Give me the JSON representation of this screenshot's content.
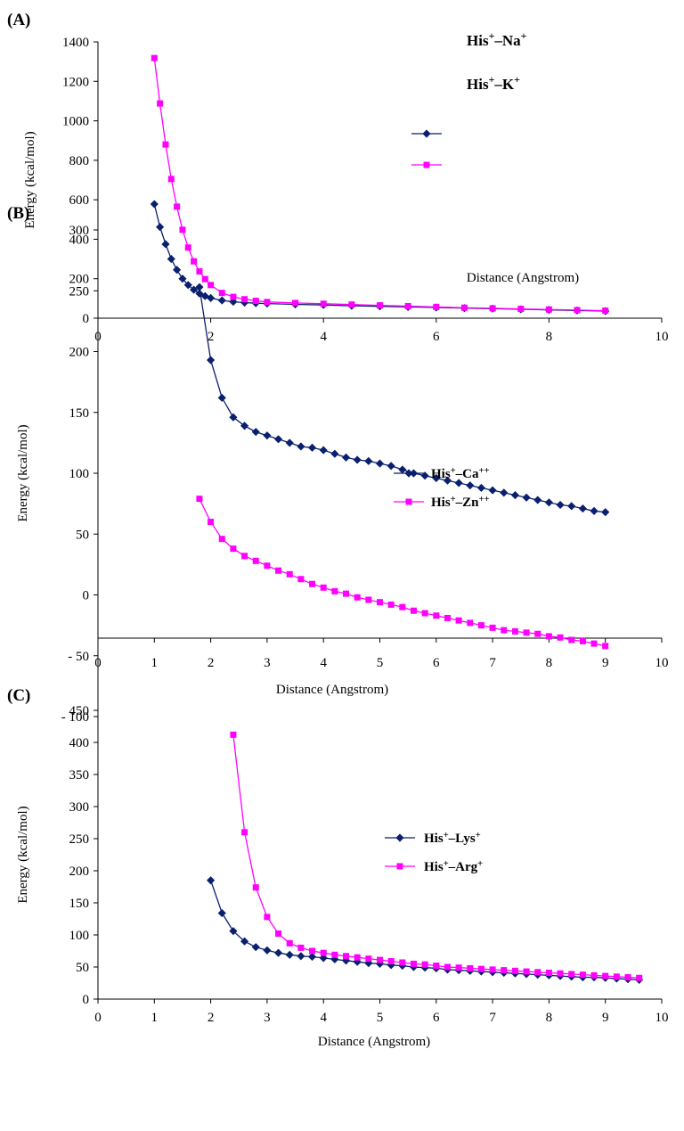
{
  "chart_data": [
    {
      "type": "line",
      "panel_label": "(A)",
      "xlabel": "Distance  (Angstrom)",
      "ylabel": "Energy  (kcal/mol)",
      "xlim": [
        0,
        10
      ],
      "ylim": [
        0,
        1400
      ],
      "xticks": [
        "0",
        "2",
        "4",
        "6",
        "8",
        "10"
      ],
      "yticks": [
        "0",
        "200",
        "400",
        "600",
        "800",
        "1000",
        "1200",
        "1400"
      ],
      "series": [
        {
          "name": "His⁺–Na⁺",
          "color": "#0a1f6e",
          "marker": "diamond",
          "x": [
            1.0,
            1.1,
            1.2,
            1.3,
            1.4,
            1.5,
            1.6,
            1.7,
            1.8,
            1.9,
            2.0,
            2.2,
            2.4,
            2.6,
            2.8,
            3.0,
            3.5,
            4.0,
            4.5,
            5.0,
            5.5,
            6.0,
            6.5,
            7.0,
            7.5,
            8.0,
            8.5,
            9.0
          ],
          "y": [
            578,
            462,
            375,
            300,
            245,
            200,
            168,
            144,
            125,
            112,
            102,
            90,
            83,
            79,
            76,
            74,
            70,
            67,
            63,
            60,
            57,
            54,
            51,
            48,
            45,
            42,
            39,
            36
          ]
        },
        {
          "name": "His⁺–K⁺",
          "color": "#ff00ff",
          "marker": "square",
          "x": [
            1.0,
            1.1,
            1.2,
            1.3,
            1.4,
            1.5,
            1.6,
            1.7,
            1.8,
            1.9,
            2.0,
            2.2,
            2.4,
            2.6,
            2.8,
            3.0,
            3.5,
            4.0,
            4.5,
            5.0,
            5.5,
            6.0,
            6.5,
            7.0,
            7.5,
            8.0,
            8.5,
            9.0
          ],
          "y": [
            1318,
            1088,
            880,
            705,
            565,
            448,
            358,
            288,
            237,
            198,
            168,
            128,
            108,
            96,
            88,
            82,
            77,
            73,
            69,
            65,
            61,
            57,
            53,
            50,
            47,
            44,
            41,
            38
          ]
        }
      ]
    },
    {
      "type": "line",
      "panel_label": "(B)",
      "xlabel": "Distance  (Angstrom)",
      "ylabel": "Energy  (kcal/mol)",
      "xlim": [
        0,
        10
      ],
      "ylim": [
        -100,
        300
      ],
      "xticks": [
        "0",
        "1",
        "2",
        "3",
        "4",
        "5",
        "6",
        "7",
        "8",
        "9",
        "10"
      ],
      "yticks": [
        "- 100",
        "- 50",
        "0",
        "50",
        "100",
        "150",
        "200",
        "250",
        "300"
      ],
      "series": [
        {
          "name": "His⁺–Ca⁺⁺",
          "color": "#0a1f6e",
          "marker": "diamond",
          "x": [
            1.8,
            2.0,
            2.2,
            2.4,
            2.6,
            2.8,
            3.0,
            3.2,
            3.4,
            3.6,
            3.8,
            4.0,
            4.2,
            4.4,
            4.6,
            4.8,
            5.0,
            5.2,
            5.4,
            5.6,
            5.8,
            6.0,
            6.2,
            6.4,
            6.6,
            6.8,
            7.0,
            7.2,
            7.4,
            7.6,
            7.8,
            8.0,
            8.2,
            8.4,
            8.6,
            8.8,
            9.0
          ],
          "y": [
            253,
            193,
            162,
            146,
            139,
            134,
            131,
            128,
            125,
            122,
            121,
            119,
            116,
            113,
            111,
            110,
            108,
            106,
            103,
            100,
            98,
            96,
            94,
            92,
            90,
            88,
            86,
            84,
            82,
            80,
            78,
            76,
            74,
            73,
            71,
            69,
            68
          ]
        },
        {
          "name": "His⁺–Zn⁺⁺",
          "color": "#ff00ff",
          "marker": "square",
          "x": [
            1.8,
            2.0,
            2.2,
            2.4,
            2.6,
            2.8,
            3.0,
            3.2,
            3.4,
            3.6,
            3.8,
            4.0,
            4.2,
            4.4,
            4.6,
            4.8,
            5.0,
            5.2,
            5.4,
            5.6,
            5.8,
            6.0,
            6.2,
            6.4,
            6.6,
            6.8,
            7.0,
            7.2,
            7.4,
            7.6,
            7.8,
            8.0,
            8.2,
            8.4,
            8.6,
            8.8,
            9.0
          ],
          "y": [
            79,
            60,
            46,
            38,
            32,
            28,
            24,
            20,
            17,
            13,
            9,
            6,
            3,
            1,
            -2,
            -4,
            -6,
            -8,
            -10,
            -13,
            -15,
            -17,
            -19,
            -21,
            -23,
            -25,
            -27,
            -29,
            -30,
            -31,
            -32,
            -34,
            -35,
            -37,
            -38,
            -40,
            -42
          ]
        }
      ]
    },
    {
      "type": "line",
      "panel_label": "(C)",
      "xlabel": "Distance  (Angstrom)",
      "ylabel": "Energy  (kcal/mol)",
      "xlim": [
        0,
        10
      ],
      "ylim": [
        0,
        450
      ],
      "xticks": [
        "0",
        "1",
        "2",
        "3",
        "4",
        "5",
        "6",
        "7",
        "8",
        "9",
        "10"
      ],
      "yticks": [
        "0",
        "50",
        "100",
        "150",
        "200",
        "250",
        "300",
        "350",
        "400",
        "450"
      ],
      "series": [
        {
          "name": "His⁺–Lys⁺",
          "color": "#0a1f6e",
          "marker": "diamond",
          "x": [
            2.0,
            2.2,
            2.4,
            2.6,
            2.8,
            3.0,
            3.2,
            3.4,
            3.6,
            3.8,
            4.0,
            4.2,
            4.4,
            4.6,
            4.8,
            5.0,
            5.2,
            5.4,
            5.6,
            5.8,
            6.0,
            6.2,
            6.4,
            6.6,
            6.8,
            7.0,
            7.2,
            7.4,
            7.6,
            7.8,
            8.0,
            8.2,
            8.4,
            8.6,
            8.8,
            9.0,
            9.2,
            9.4,
            9.6
          ],
          "y": [
            185,
            134,
            106,
            90,
            81,
            76,
            72,
            69,
            67,
            66,
            64,
            62,
            60,
            58,
            56,
            55,
            53,
            52,
            50,
            49,
            48,
            46,
            45,
            44,
            43,
            42,
            41,
            40,
            39,
            38,
            37,
            36,
            35,
            34,
            34,
            33,
            32,
            31,
            30
          ]
        },
        {
          "name": "His⁺–Arg⁺",
          "color": "#ff00ff",
          "marker": "square",
          "x": [
            2.4,
            2.6,
            2.8,
            3.0,
            3.2,
            3.4,
            3.6,
            3.8,
            4.0,
            4.2,
            4.4,
            4.6,
            4.8,
            5.0,
            5.2,
            5.4,
            5.6,
            5.8,
            6.0,
            6.2,
            6.4,
            6.6,
            6.8,
            7.0,
            7.2,
            7.4,
            7.6,
            7.8,
            8.0,
            8.2,
            8.4,
            8.6,
            8.8,
            9.0,
            9.2,
            9.4,
            9.6
          ],
          "y": [
            412,
            260,
            174,
            128,
            102,
            87,
            80,
            75,
            72,
            69,
            67,
            65,
            63,
            61,
            59,
            57,
            55,
            54,
            52,
            50,
            49,
            48,
            47,
            46,
            45,
            44,
            43,
            42,
            41,
            40,
            39,
            38,
            37,
            36,
            35,
            34,
            33
          ]
        }
      ]
    }
  ]
}
